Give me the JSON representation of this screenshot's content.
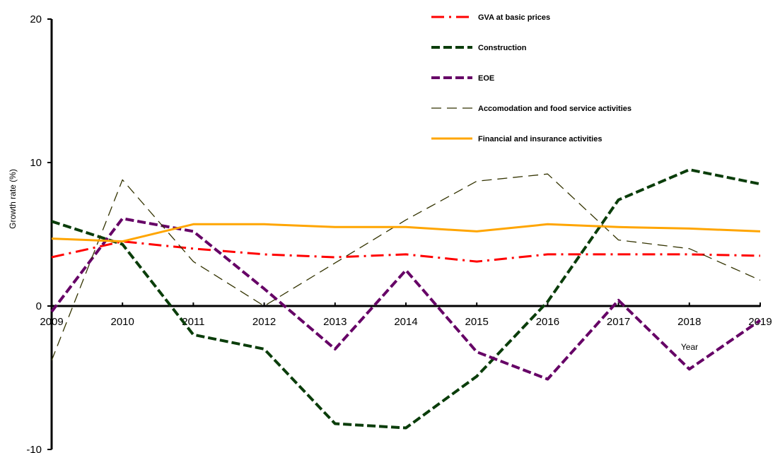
{
  "chart_data": {
    "type": "line",
    "title": "",
    "xlabel": "Year",
    "ylabel": "Growth rate (%)",
    "x": [
      "2009",
      "2010",
      "2011",
      "2012",
      "2013",
      "2014",
      "2015",
      "2016",
      "2017",
      "2018",
      "2019"
    ],
    "ylim": [
      -10,
      20
    ],
    "yticks": [
      -10,
      0,
      10,
      20
    ],
    "grid": false,
    "legend_position": "top-right",
    "series": [
      {
        "name": "GVA at basic prices",
        "color": "#ff0000",
        "style": "dash-dot",
        "values": [
          3.4,
          4.5,
          4.0,
          3.6,
          3.4,
          3.6,
          3.1,
          3.6,
          3.6,
          3.6,
          3.5
        ]
      },
      {
        "name": "Construction",
        "color": "#0a3d0a",
        "style": "dashed-bold",
        "values": [
          5.9,
          4.3,
          -2.0,
          -3.0,
          -8.2,
          -8.5,
          -4.9,
          0.3,
          7.4,
          9.5,
          8.5
        ]
      },
      {
        "name": "EOE",
        "color": "#660066",
        "style": "dashed-bold",
        "values": [
          -0.4,
          6.1,
          5.2,
          1.2,
          -3.0,
          2.5,
          -3.2,
          -5.1,
          0.4,
          -4.4,
          -1.0
        ]
      },
      {
        "name": "Accomodation and food service activities",
        "color": "#333300",
        "style": "dashed-thin",
        "values": [
          -3.8,
          8.8,
          3.1,
          0.0,
          3.0,
          6.0,
          8.7,
          9.2,
          4.6,
          4.0,
          1.8
        ]
      },
      {
        "name": "Financial and insurance activities",
        "color": "#ffa500",
        "style": "solid",
        "values": [
          4.7,
          4.5,
          5.7,
          5.7,
          5.5,
          5.5,
          5.2,
          5.7,
          5.5,
          5.4,
          5.2
        ]
      }
    ]
  }
}
